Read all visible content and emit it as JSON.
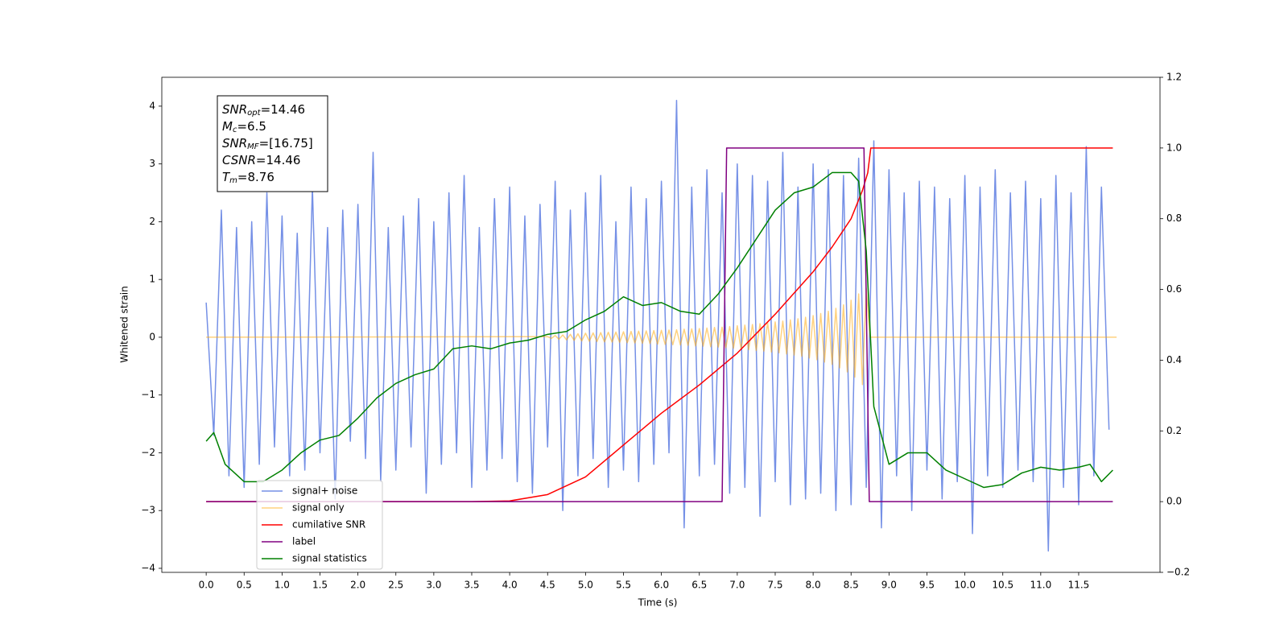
{
  "chart_data": {
    "type": "line",
    "xlabel": "Time (s)",
    "ylabel": "Whitened strain",
    "xlim": [
      -0.585,
      12.572
    ],
    "ylim": [
      -4.07,
      4.5
    ],
    "y2lim": [
      -0.2,
      1.2
    ],
    "xticks": [
      {
        "value": 0,
        "label": "0.0"
      },
      {
        "value": 0.5,
        "label": "0.5"
      },
      {
        "value": 1,
        "label": "1.0"
      },
      {
        "value": 1.5,
        "label": "1.5"
      },
      {
        "value": 2,
        "label": "2.0"
      },
      {
        "value": 2.5,
        "label": "2.5"
      },
      {
        "value": 3,
        "label": "3.0"
      },
      {
        "value": 3.5,
        "label": "3.5"
      },
      {
        "value": 4,
        "label": "4.0"
      },
      {
        "value": 4.5,
        "label": "4.5"
      },
      {
        "value": 5,
        "label": "5.0"
      },
      {
        "value": 5.5,
        "label": "5.5"
      },
      {
        "value": 6,
        "label": "6.0"
      },
      {
        "value": 6.5,
        "label": "6.5"
      },
      {
        "value": 7,
        "label": "7.0"
      },
      {
        "value": 7.5,
        "label": "7.5"
      },
      {
        "value": 8,
        "label": "8.0"
      },
      {
        "value": 8.5,
        "label": "8.5"
      },
      {
        "value": 9,
        "label": "9.0"
      },
      {
        "value": 9.5,
        "label": "9.5"
      },
      {
        "value": 10,
        "label": "10.0"
      },
      {
        "value": 10.5,
        "label": "10.5"
      },
      {
        "value": 11,
        "label": "11.0"
      },
      {
        "value": 11.5,
        "label": "11.5"
      }
    ],
    "yticks": [
      {
        "value": -4,
        "label": "−4"
      },
      {
        "value": -3,
        "label": "−3"
      },
      {
        "value": -2,
        "label": "−2"
      },
      {
        "value": -1,
        "label": "−1"
      },
      0,
      1,
      2,
      3,
      4
    ],
    "y2ticks": [
      {
        "value": -0.2,
        "label": "−0.2"
      },
      {
        "value": 0,
        "label": "0.0"
      },
      0.2,
      0.4,
      0.6,
      0.8,
      {
        "value": 1,
        "label": "1.0"
      },
      1.2
    ],
    "legend_loc": "lower left",
    "annotations": [
      {
        "symbol": "SNR",
        "subscript": "opt",
        "text": "=14.46"
      },
      {
        "symbol": "M",
        "subscript": "c",
        "text": "=6.5"
      },
      {
        "symbol": "SNR",
        "subscript": "MF",
        "text": "=[16.75]"
      },
      {
        "symbol": "CSNR",
        "subscript": "",
        "text": "=14.46"
      },
      {
        "symbol": "T",
        "subscript": "m",
        "text": "=8.76"
      }
    ],
    "series": [
      {
        "name": "signal+ noise",
        "color": "#7590e6",
        "x": [
          0,
          0.1,
          0.2,
          0.3,
          0.4,
          0.5,
          0.6,
          0.7,
          0.8,
          0.9,
          1,
          1.1,
          1.2,
          1.3,
          1.4,
          1.5,
          1.6,
          1.7,
          1.8,
          1.9,
          2,
          2.1,
          2.2,
          2.3,
          2.4,
          2.5,
          2.6,
          2.7,
          2.8,
          2.9,
          3,
          3.1,
          3.2,
          3.3,
          3.4,
          3.5,
          3.6,
          3.7,
          3.8,
          3.9,
          4,
          4.1,
          4.2,
          4.3,
          4.4,
          4.5,
          4.6,
          4.7,
          4.8,
          4.9,
          5,
          5.1,
          5.2,
          5.3,
          5.4,
          5.5,
          5.6,
          5.7,
          5.8,
          5.9,
          6,
          6.1,
          6.2,
          6.3,
          6.4,
          6.5,
          6.6,
          6.7,
          6.8,
          6.9,
          7,
          7.1,
          7.2,
          7.3,
          7.4,
          7.5,
          7.6,
          7.7,
          7.8,
          7.9,
          8,
          8.1,
          8.2,
          8.3,
          8.4,
          8.5,
          8.6,
          8.7,
          8.8,
          8.9,
          9,
          9.1,
          9.2,
          9.3,
          9.4,
          9.5,
          9.6,
          9.7,
          9.8,
          9.9,
          10,
          10.1,
          10.2,
          10.3,
          10.4,
          10.5,
          10.6,
          10.7,
          10.8,
          10.9,
          11,
          11.1,
          11.2,
          11.3,
          11.4,
          11.5,
          11.6,
          11.7,
          11.8,
          11.9
        ],
        "values": [
          0.6,
          -1.7,
          2.2,
          -2.4,
          1.9,
          -2.6,
          2.0,
          -2.2,
          2.5,
          -1.9,
          2.1,
          -2.4,
          1.8,
          -2.3,
          2.6,
          -2.0,
          1.9,
          -2.8,
          2.2,
          -1.8,
          2.3,
          -2.1,
          3.2,
          -2.5,
          1.9,
          -2.3,
          2.1,
          -1.9,
          2.4,
          -2.7,
          2.0,
          -2.2,
          2.5,
          -2.0,
          2.8,
          -2.6,
          1.9,
          -2.3,
          2.4,
          -2.1,
          2.6,
          -2.5,
          2.1,
          -2.7,
          2.3,
          -1.9,
          2.7,
          -3.0,
          2.2,
          -2.4,
          2.5,
          -2.1,
          2.8,
          -2.6,
          2.0,
          -2.3,
          2.6,
          -2.5,
          2.4,
          -2.2,
          2.7,
          -2.0,
          4.1,
          -3.3,
          2.6,
          -2.4,
          2.9,
          -2.2,
          2.5,
          -2.7,
          3.0,
          -2.6,
          2.8,
          -3.1,
          2.7,
          -2.5,
          3.2,
          -2.9,
          2.6,
          -2.8,
          3.0,
          -2.7,
          2.9,
          -3.0,
          2.8,
          -2.9,
          3.1,
          -2.6,
          3.4,
          -3.3,
          2.9,
          -2.4,
          2.5,
          -3.0,
          2.7,
          -2.3,
          2.6,
          -2.8,
          2.4,
          -2.5,
          2.8,
          -3.4,
          2.6,
          -2.4,
          2.9,
          -2.6,
          2.5,
          -2.3,
          2.7,
          -2.5,
          2.4,
          -3.7,
          2.8,
          -2.6,
          2.5,
          -2.9,
          3.3,
          -2.4,
          2.6,
          -1.6
        ]
      },
      {
        "name": "signal only",
        "color": "orange",
        "alpha": 0.5,
        "x": [
          0,
          4.5,
          4.55,
          4.6,
          4.65,
          4.7,
          4.75,
          4.8,
          4.85,
          4.9,
          4.95,
          5,
          5.05,
          5.1,
          5.15,
          5.2,
          5.25,
          5.3,
          5.35,
          5.4,
          5.45,
          5.5,
          5.55,
          5.6,
          5.65,
          5.7,
          5.75,
          5.8,
          5.85,
          5.9,
          5.95,
          6,
          6.05,
          6.1,
          6.15,
          6.2,
          6.25,
          6.3,
          6.35,
          6.4,
          6.45,
          6.5,
          6.55,
          6.6,
          6.65,
          6.7,
          6.75,
          6.8,
          6.85,
          6.9,
          6.95,
          7,
          7.05,
          7.1,
          7.15,
          7.2,
          7.25,
          7.3,
          7.35,
          7.4,
          7.45,
          7.5,
          7.55,
          7.6,
          7.65,
          7.7,
          7.75,
          7.8,
          7.85,
          7.9,
          7.95,
          8,
          8.05,
          8.1,
          8.15,
          8.2,
          8.25,
          8.3,
          8.35,
          8.4,
          8.45,
          8.5,
          8.55,
          8.6,
          8.65,
          8.7,
          8.75,
          12
        ],
        "values": [
          0,
          0.01,
          -0.02,
          0.03,
          -0.035,
          0.04,
          -0.045,
          0.05,
          -0.055,
          0.06,
          -0.065,
          0.07,
          -0.07,
          0.075,
          -0.075,
          0.08,
          -0.08,
          0.085,
          -0.085,
          0.09,
          -0.09,
          0.095,
          -0.095,
          0.1,
          -0.1,
          0.105,
          -0.105,
          0.11,
          -0.11,
          0.115,
          -0.12,
          0.12,
          -0.125,
          0.125,
          -0.13,
          0.13,
          -0.135,
          0.14,
          -0.14,
          0.145,
          -0.15,
          0.15,
          -0.155,
          0.16,
          -0.165,
          0.17,
          -0.17,
          0.175,
          -0.18,
          0.185,
          -0.19,
          0.2,
          -0.205,
          0.21,
          -0.215,
          0.22,
          -0.23,
          0.235,
          -0.24,
          0.25,
          -0.255,
          0.265,
          -0.27,
          0.28,
          -0.29,
          0.3,
          -0.31,
          0.32,
          -0.33,
          0.345,
          -0.36,
          0.375,
          -0.39,
          0.41,
          -0.43,
          0.45,
          -0.47,
          0.5,
          -0.53,
          0.56,
          -0.6,
          0.64,
          -0.69,
          0.75,
          -0.82,
          0.85,
          0,
          0
        ]
      },
      {
        "name": "cumilative SNR",
        "color": "#ff0000",
        "axis": "y2",
        "x": [
          0,
          3.5,
          4,
          4.5,
          5,
          5.5,
          6,
          6.5,
          7,
          7.5,
          8,
          8.25,
          8.5,
          8.65,
          8.72,
          8.76,
          11.95
        ],
        "values": [
          0,
          0,
          0.002,
          0.02,
          0.07,
          0.16,
          0.25,
          0.33,
          0.42,
          0.53,
          0.65,
          0.72,
          0.8,
          0.88,
          0.93,
          1,
          1
        ]
      },
      {
        "name": "label",
        "color": "#800080",
        "axis": "y2",
        "x": [
          0,
          6.8,
          6.86,
          8.67,
          8.74,
          11.95
        ],
        "values": [
          0,
          0,
          1,
          1,
          0,
          0
        ]
      },
      {
        "name": "signal statistics",
        "color": "#008000",
        "x": [
          0,
          0.1,
          0.25,
          0.5,
          0.75,
          1,
          1.25,
          1.5,
          1.75,
          2,
          2.25,
          2.5,
          2.75,
          3,
          3.25,
          3.5,
          3.75,
          4,
          4.25,
          4.5,
          4.75,
          5,
          5.25,
          5.5,
          5.75,
          6,
          6.25,
          6.5,
          6.75,
          7,
          7.25,
          7.5,
          7.75,
          8,
          8.25,
          8.5,
          8.6,
          8.7,
          8.8,
          9,
          9.25,
          9.5,
          9.75,
          10,
          10.25,
          10.5,
          10.75,
          11,
          11.25,
          11.5,
          11.65,
          11.8,
          11.95
        ],
        "values": [
          -1.8,
          -1.65,
          -2.2,
          -2.5,
          -2.5,
          -2.3,
          -2.0,
          -1.78,
          -1.7,
          -1.4,
          -1.05,
          -0.8,
          -0.65,
          -0.55,
          -0.2,
          -0.15,
          -0.2,
          -0.1,
          -0.05,
          0.05,
          0.1,
          0.3,
          0.45,
          0.7,
          0.55,
          0.6,
          0.45,
          0.4,
          0.75,
          1.2,
          1.7,
          2.2,
          2.5,
          2.6,
          2.85,
          2.85,
          2.7,
          1.5,
          -1.2,
          -2.2,
          -2.0,
          -2.0,
          -2.3,
          -2.45,
          -2.6,
          -2.55,
          -2.35,
          -2.25,
          -2.3,
          -2.25,
          -2.2,
          -2.5,
          -2.3
        ]
      }
    ]
  }
}
